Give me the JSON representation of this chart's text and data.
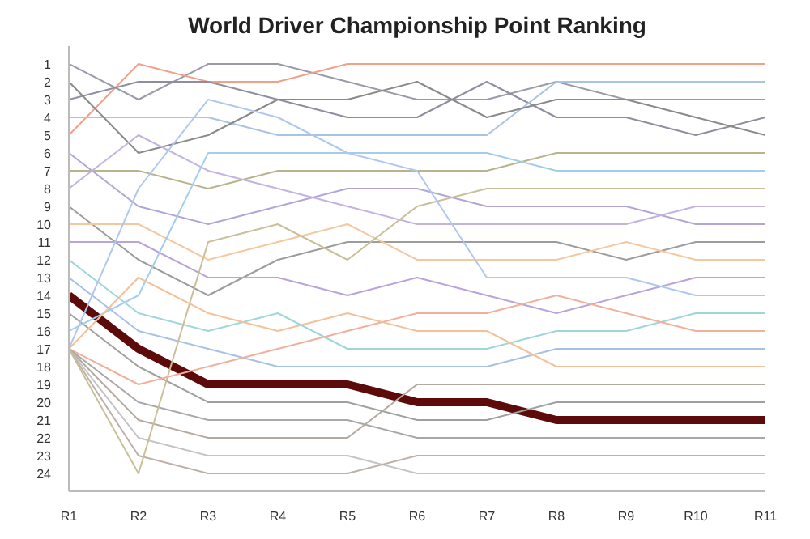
{
  "chart_data": {
    "type": "line",
    "title": "World Driver Championship Point Ranking",
    "categories": [
      "R1",
      "R2",
      "R3",
      "R4",
      "R5",
      "R6",
      "R7",
      "R8",
      "R9",
      "R10",
      "R11"
    ],
    "ylim": [
      25,
      0
    ],
    "yticks": [
      1,
      2,
      3,
      4,
      5,
      6,
      7,
      8,
      9,
      10,
      11,
      12,
      13,
      14,
      15,
      16,
      17,
      18,
      19,
      20,
      21,
      22,
      23,
      24
    ],
    "series": [
      {
        "color": "#9a9aa8",
        "values": [
          1,
          3,
          1,
          1,
          2,
          3,
          3,
          2,
          3,
          3,
          3
        ]
      },
      {
        "color": "#f2a08a",
        "values": [
          5,
          1,
          2,
          2,
          1,
          1,
          1,
          1,
          1,
          1,
          1
        ]
      },
      {
        "color": "#8e8e9e",
        "values": [
          3,
          2,
          2,
          3,
          4,
          4,
          2,
          4,
          4,
          5,
          4
        ]
      },
      {
        "color": "#a9c4e0",
        "values": [
          4,
          4,
          4,
          5,
          5,
          5,
          5,
          2,
          2,
          2,
          2
        ]
      },
      {
        "color": "#8a8a8a",
        "values": [
          2,
          6,
          5,
          3,
          3,
          2,
          4,
          3,
          3,
          4,
          5
        ]
      },
      {
        "color": "#b3a6d6",
        "values": [
          6,
          9,
          10,
          9,
          8,
          8,
          9,
          9,
          9,
          10,
          10
        ]
      },
      {
        "color": "#b8b48e",
        "values": [
          7,
          7,
          8,
          7,
          7,
          7,
          7,
          6,
          6,
          6,
          6
        ]
      },
      {
        "color": "#c2b3e0",
        "values": [
          8,
          5,
          7,
          8,
          9,
          10,
          10,
          10,
          10,
          9,
          9
        ]
      },
      {
        "color": "#9c9c9c",
        "values": [
          9,
          12,
          14,
          12,
          11,
          11,
          11,
          11,
          12,
          11,
          11
        ]
      },
      {
        "color": "#f5c8a0",
        "values": [
          10,
          10,
          12,
          11,
          10,
          12,
          12,
          12,
          11,
          12,
          12
        ]
      },
      {
        "color": "#b9a3d9",
        "values": [
          11,
          11,
          13,
          13,
          14,
          13,
          14,
          15,
          14,
          13,
          13
        ]
      },
      {
        "color": "#9fd6da",
        "values": [
          12,
          15,
          16,
          15,
          17,
          17,
          17,
          16,
          16,
          15,
          15
        ]
      },
      {
        "color": "#a7c0e6",
        "values": [
          13,
          16,
          17,
          18,
          18,
          18,
          18,
          17,
          17,
          17,
          17
        ]
      },
      {
        "color": "#5c0a0a",
        "values": [
          14,
          17,
          19,
          19,
          19,
          20,
          20,
          21,
          21,
          21,
          21
        ]
      },
      {
        "color": "#a0a0a0",
        "values": [
          15,
          18,
          20,
          20,
          20,
          21,
          21,
          20,
          20,
          20,
          20
        ]
      },
      {
        "color": "#a3cdeb",
        "values": [
          16,
          14,
          6,
          6,
          6,
          6,
          6,
          7,
          7,
          7,
          7
        ]
      },
      {
        "color": "#f0b09a",
        "values": [
          17,
          19,
          18,
          17,
          16,
          15,
          15,
          14,
          15,
          16,
          16
        ]
      },
      {
        "color": "#a8a8a8",
        "values": [
          17,
          20,
          21,
          21,
          21,
          22,
          22,
          22,
          22,
          22,
          22
        ]
      },
      {
        "color": "#b5aaa0",
        "values": [
          17,
          21,
          22,
          22,
          22,
          19,
          19,
          19,
          19,
          19,
          19
        ]
      },
      {
        "color": "#c4c4c4",
        "values": [
          17,
          22,
          23,
          23,
          23,
          24,
          24,
          24,
          24,
          24,
          24
        ]
      },
      {
        "color": "#bcb0a8",
        "values": [
          17,
          23,
          24,
          24,
          24,
          23,
          23,
          23,
          23,
          23,
          23
        ]
      },
      {
        "color": "#c9c09a",
        "values": [
          17,
          24,
          11,
          10,
          12,
          9,
          8,
          8,
          8,
          8,
          8
        ]
      },
      {
        "color": "#f3c19a",
        "values": [
          17,
          13,
          15,
          16,
          15,
          16,
          16,
          18,
          18,
          18,
          18
        ]
      },
      {
        "color": "#b0c8f0",
        "values": [
          17,
          8,
          3,
          4,
          6,
          7,
          13,
          13,
          13,
          14,
          14
        ]
      }
    ]
  }
}
